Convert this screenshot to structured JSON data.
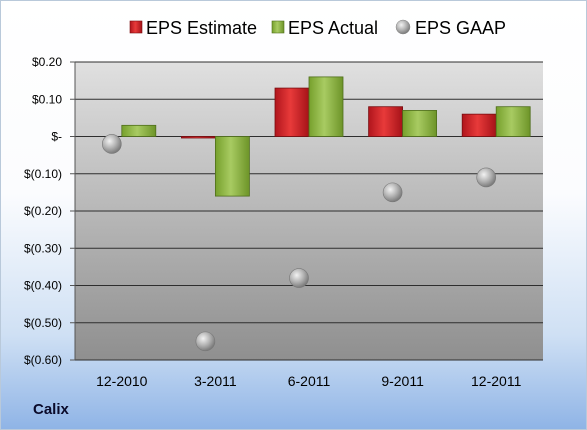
{
  "chart_data": {
    "type": "bar",
    "categories": [
      "12-2010",
      "3-2011",
      "6-2011",
      "9-2011",
      "12-2011"
    ],
    "series": [
      {
        "name": "EPS Estimate",
        "kind": "bar",
        "color": "#c8202a",
        "values": [
          null,
          0.0,
          0.13,
          0.08,
          0.06
        ]
      },
      {
        "name": "EPS Actual",
        "kind": "bar",
        "color": "#8ab040",
        "values": [
          0.03,
          -0.16,
          0.16,
          0.07,
          0.08
        ]
      },
      {
        "name": "EPS GAAP",
        "kind": "marker",
        "color": "#a8a8a8",
        "values": [
          -0.02,
          -0.55,
          -0.38,
          -0.15,
          -0.11
        ]
      }
    ],
    "ylim": [
      -0.6,
      0.2
    ],
    "yticks": [
      0.2,
      0.1,
      0,
      -0.1,
      -0.2,
      -0.3,
      -0.4,
      -0.5,
      -0.6
    ],
    "ytick_labels": [
      "$0.20",
      "$0.10",
      "$-",
      "$(0.10)",
      "$(0.20)",
      "$(0.30)",
      "$(0.40)",
      "$(0.50)",
      "$(0.60)"
    ],
    "grid": true,
    "legend_position": "top"
  },
  "company": "Calix"
}
